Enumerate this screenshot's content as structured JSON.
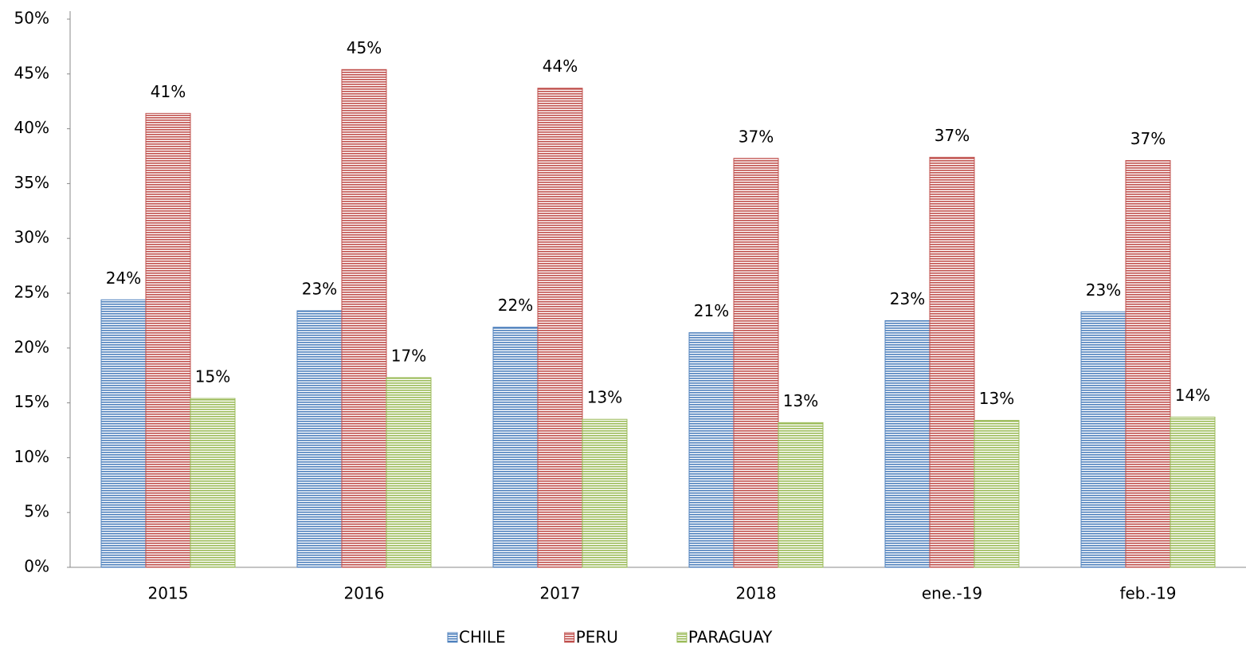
{
  "chart_data": {
    "type": "bar",
    "categories": [
      "2015",
      "2016",
      "2017",
      "2018",
      "ene.-19",
      "feb.-19"
    ],
    "series": [
      {
        "name": "CHILE",
        "color": "#4f81bd",
        "values": [
          24.4,
          23.4,
          21.9,
          21.4,
          22.5,
          23.3
        ],
        "value_labels": [
          "24%",
          "23%",
          "22%",
          "21%",
          "23%",
          "23%"
        ]
      },
      {
        "name": "PERU",
        "color": "#c0504d",
        "values": [
          41.4,
          45.4,
          43.7,
          37.3,
          37.4,
          37.1
        ],
        "value_labels": [
          "41%",
          "45%",
          "44%",
          "37%",
          "37%",
          "37%"
        ]
      },
      {
        "name": "PARAGUAY",
        "color": "#9bbb59",
        "values": [
          15.4,
          17.3,
          13.5,
          13.2,
          13.4,
          13.7
        ],
        "value_labels": [
          "15%",
          "17%",
          "13%",
          "13%",
          "13%",
          "14%"
        ]
      }
    ],
    "ylim": [
      0,
      50
    ],
    "yticks": [
      {
        "value": 0,
        "label": "0%"
      },
      {
        "value": 5,
        "label": "5%"
      },
      {
        "value": 10,
        "label": "10%"
      },
      {
        "value": 15,
        "label": "15%"
      },
      {
        "value": 20,
        "label": "20%"
      },
      {
        "value": 25,
        "label": "25%"
      },
      {
        "value": 30,
        "label": "30%"
      },
      {
        "value": 35,
        "label": "35%"
      },
      {
        "value": 40,
        "label": "40%"
      },
      {
        "value": 45,
        "label": "45%"
      },
      {
        "value": 50,
        "label": "50%"
      }
    ],
    "grid": false,
    "legend": "bottom"
  }
}
